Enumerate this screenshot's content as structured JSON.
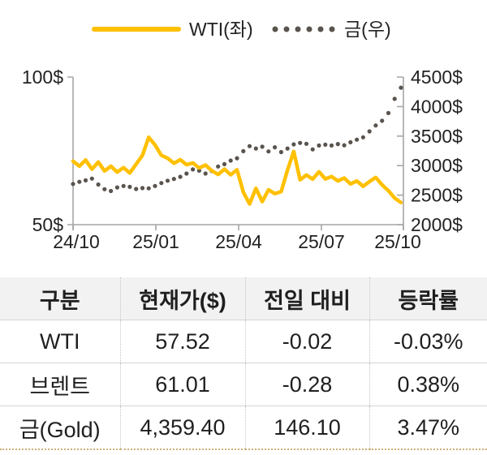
{
  "chart_data": {
    "type": "line",
    "title": "",
    "x_tick_labels": [
      "24/10",
      "25/01",
      "25/04",
      "25/07",
      "25/10"
    ],
    "left_axis": {
      "min": 50,
      "max": 100,
      "tick_labels": [
        "100$",
        "50$"
      ]
    },
    "right_axis": {
      "min": 2000,
      "max": 4500,
      "tick_labels": [
        "4500$",
        "4000$",
        "3500$",
        "3000$",
        "2500$",
        "2000$"
      ]
    },
    "grid": false,
    "legend_position": "top",
    "series": [
      {
        "name": "WTI(좌)",
        "axis": "left",
        "style": "solid-line",
        "color": "#FFC000",
        "values": [
          71.5,
          69.8,
          71.9,
          68.8,
          71.2,
          68.2,
          69.8,
          67.8,
          69.3,
          67.5,
          70.5,
          73.5,
          79.6,
          77.0,
          73.5,
          72.5,
          70.8,
          72.0,
          70.3,
          70.9,
          69.2,
          70.2,
          68.3,
          67.0,
          68.8,
          66.9,
          68.6,
          61.0,
          57.0,
          62.3,
          57.8,
          61.8,
          60.5,
          61.2,
          68.5,
          74.8,
          65.2,
          66.8,
          65.4,
          67.9,
          65.5,
          66.3,
          64.8,
          65.8,
          63.8,
          64.8,
          63.0,
          64.6,
          66.0,
          63.5,
          61.5,
          59.0,
          57.5
        ]
      },
      {
        "name": "금(우)",
        "axis": "right",
        "style": "dotted",
        "color": "#5A544E",
        "values": [
          2690,
          2725,
          2750,
          2780,
          2680,
          2600,
          2570,
          2630,
          2655,
          2640,
          2605,
          2620,
          2615,
          2655,
          2705,
          2745,
          2775,
          2810,
          2865,
          2935,
          2915,
          2865,
          2910,
          2985,
          3025,
          3085,
          3125,
          3245,
          3330,
          3290,
          3320,
          3240,
          3310,
          3230,
          3290,
          3360,
          3385,
          3370,
          3275,
          3340,
          3355,
          3340,
          3365,
          3345,
          3395,
          3440,
          3480,
          3580,
          3680,
          3760,
          3890,
          4130,
          4320
        ]
      }
    ]
  },
  "table": {
    "headers": [
      "구분",
      "현재가($)",
      "전일 대비",
      "등락률"
    ],
    "rows": [
      {
        "label": "WTI",
        "cells": [
          "57.52",
          "-0.02",
          "-0.03%"
        ]
      },
      {
        "label": "브렌트",
        "cells": [
          "61.01",
          "-0.28",
          "0.38%"
        ]
      },
      {
        "label": "금(Gold)",
        "cells": [
          "4,359.40",
          "146.10",
          "3.47%"
        ]
      }
    ]
  },
  "colors": {
    "wti_yellow": "#FFC000",
    "gold_dot_gray": "#5A544E",
    "axis_gray": "#A6A6A6",
    "table_header_bg": "#F2F2F2",
    "table_bottom_border": "#CDB078"
  }
}
